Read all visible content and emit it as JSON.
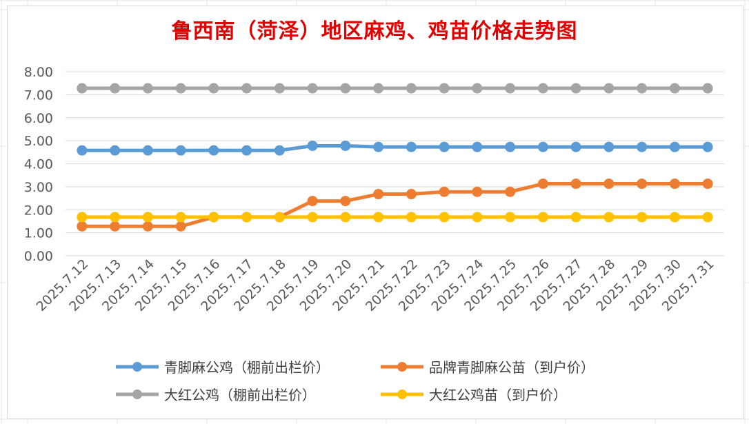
{
  "chart_data": {
    "type": "line",
    "title": "鲁西南（菏泽）地区麻鸡、鸡苗价格走势图",
    "categories": [
      "2025.7.12",
      "2025.7.13",
      "2025.7.14",
      "2025.7.15",
      "2025.7.16",
      "2025.7.17",
      "2025.7.18",
      "2025.7.19",
      "2025.7.20",
      "2025.7.21",
      "2025.7.22",
      "2025.7.23",
      "2025.7.24",
      "2025.7.25",
      "2025.7.26",
      "2025.7.27",
      "2025.7.28",
      "2025.7.29",
      "2025.7.30",
      "2025.7.31"
    ],
    "ylim": [
      0,
      8
    ],
    "ytick_step": 1,
    "ytick_labels": [
      "0.00",
      "1.00",
      "2.00",
      "3.00",
      "4.00",
      "5.00",
      "6.00",
      "7.00",
      "8.00"
    ],
    "grid": true,
    "legend_position": "bottom",
    "series": [
      {
        "name": "青脚麻公鸡（棚前出栏价）",
        "color": "#5b9bd5",
        "values": [
          4.58,
          4.58,
          4.58,
          4.58,
          4.58,
          4.58,
          4.58,
          4.78,
          4.78,
          4.73,
          4.73,
          4.73,
          4.73,
          4.73,
          4.73,
          4.73,
          4.73,
          4.73,
          4.73,
          4.73
        ]
      },
      {
        "name": "品牌青脚麻公苗（到户价）",
        "color": "#ed7d31",
        "values": [
          1.28,
          1.28,
          1.28,
          1.28,
          1.68,
          1.68,
          1.68,
          2.38,
          2.38,
          2.68,
          2.68,
          2.78,
          2.78,
          2.78,
          3.13,
          3.13,
          3.13,
          3.13,
          3.13,
          3.13
        ]
      },
      {
        "name": "大红公鸡（棚前出栏价）",
        "color": "#a5a5a5",
        "values": [
          7.28,
          7.28,
          7.28,
          7.28,
          7.28,
          7.28,
          7.28,
          7.28,
          7.28,
          7.28,
          7.28,
          7.28,
          7.28,
          7.28,
          7.28,
          7.28,
          7.28,
          7.28,
          7.28,
          7.28
        ]
      },
      {
        "name": "大红公鸡苗（到户价）",
        "color": "#ffc000",
        "values": [
          1.68,
          1.68,
          1.68,
          1.68,
          1.68,
          1.68,
          1.68,
          1.68,
          1.68,
          1.68,
          1.68,
          1.68,
          1.68,
          1.68,
          1.68,
          1.68,
          1.68,
          1.68,
          1.68,
          1.68
        ]
      }
    ]
  }
}
